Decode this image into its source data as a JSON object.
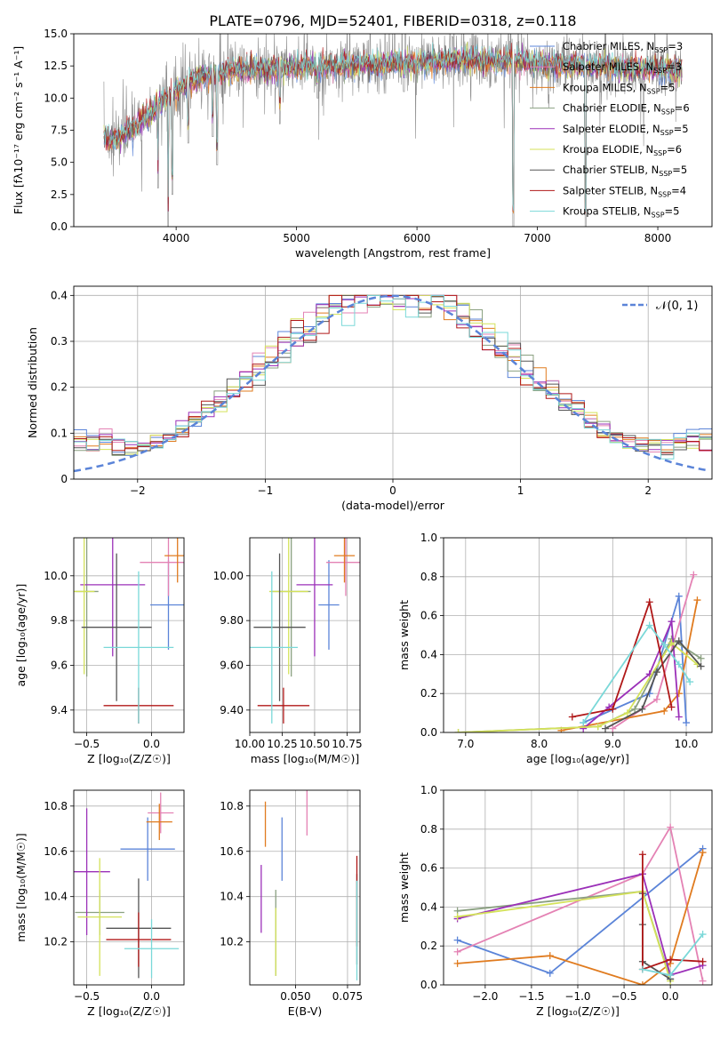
{
  "figure_title": "PLATE=0796, MJD=52401, FIBERID=0318, z=0.118",
  "model_colors": {
    "Chabrier MILES": "#5b84d8",
    "Salpeter MILES": "#e482b4",
    "Kroupa MILES": "#e07b1f",
    "Chabrier ELODIE": "#8aa080",
    "Salpeter ELODIE": "#9b30b8",
    "Kroupa ELODIE": "#d4e25a",
    "Chabrier STELIB": "#555555",
    "Salpeter STELIB": "#b01818",
    "Kroupa STELIB": "#7ad8d8",
    "data": "#8a8a8a",
    "gaussian": "#5b84d8"
  },
  "chart_data": [
    {
      "id": "spectrum",
      "type": "line",
      "title": "PLATE=0796, MJD=52401, FIBERID=0318, z=0.118",
      "xlabel": "wavelength [Angstrom, rest frame]",
      "ylabel": "Flux [fλ10⁻¹⁷ erg cm⁻² s⁻¹ A⁻¹]",
      "xlim": [
        3150,
        8450
      ],
      "ylim": [
        0,
        15
      ],
      "xticks": [
        4000,
        5000,
        6000,
        7000,
        8000
      ],
      "yticks": [
        0.0,
        2.5,
        5.0,
        7.5,
        10.0,
        12.5,
        15.0
      ],
      "legend_position": "right",
      "legend": [
        {
          "label": "Chabrier MILES, N",
          "sub": "SSP",
          "suffix": "=3"
        },
        {
          "label": "Salpeter MILES, N",
          "sub": "SSP",
          "suffix": "=3"
        },
        {
          "label": "Kroupa MILES, N",
          "sub": "SSP",
          "suffix": "=5"
        },
        {
          "label": "Chabrier ELODIE, N",
          "sub": "SSP",
          "suffix": "=6"
        },
        {
          "label": "Salpeter ELODIE, N",
          "sub": "SSP",
          "suffix": "=5"
        },
        {
          "label": "Kroupa ELODIE, N",
          "sub": "SSP",
          "suffix": "=6"
        },
        {
          "label": "Chabrier STELIB, N",
          "sub": "SSP",
          "suffix": "=5"
        },
        {
          "label": "Salpeter STELIB, N",
          "sub": "SSP",
          "suffix": "=4"
        },
        {
          "label": "Kroupa STELIB, N",
          "sub": "SSP",
          "suffix": "=5"
        }
      ],
      "continuum": {
        "x": [
          3400,
          3500,
          3600,
          3700,
          3800,
          3900,
          4000,
          4100,
          4200,
          4300,
          4400,
          4500,
          4600,
          4800,
          5000,
          5200,
          5400,
          5600,
          5800,
          6000,
          6200,
          6400,
          6600,
          6800,
          7000,
          7200,
          7400,
          7600,
          7800,
          8000,
          8200
        ],
        "y": [
          7.0,
          6.8,
          7.4,
          8.1,
          9.0,
          9.8,
          10.6,
          11.2,
          11.6,
          11.8,
          12.0,
          12.2,
          12.1,
          12.3,
          12.4,
          12.5,
          12.5,
          12.6,
          12.7,
          12.7,
          12.9,
          13.0,
          12.9,
          12.9,
          12.7,
          12.6,
          12.5,
          12.4,
          12.3,
          12.2,
          12.1
        ]
      },
      "dips": [
        {
          "x": 3850,
          "y": 3.0
        },
        {
          "x": 3934,
          "y": 0.0
        },
        {
          "x": 3968,
          "y": 2.5
        },
        {
          "x": 4101,
          "y": 6.5
        },
        {
          "x": 4304,
          "y": 7.0
        },
        {
          "x": 4340,
          "y": 4.8
        },
        {
          "x": 4861,
          "y": 8.0
        },
        {
          "x": 5175,
          "y": 10.0
        },
        {
          "x": 5270,
          "y": 11.0
        },
        {
          "x": 5892,
          "y": 10.5
        },
        {
          "x": 6563,
          "y": 11.5
        },
        {
          "x": 6800,
          "y": 0.0
        },
        {
          "x": 7400,
          "y": 0.0
        },
        {
          "x": 7600,
          "y": 11.0
        }
      ]
    },
    {
      "id": "residuals",
      "type": "line",
      "xlabel": "(data-model)/error",
      "ylabel": "Normed distribution",
      "xlim": [
        -2.5,
        2.5
      ],
      "ylim": [
        0,
        0.42
      ],
      "xticks": [
        -2,
        -1,
        0,
        1,
        2
      ],
      "yticks": [
        0.0,
        0.1,
        0.2,
        0.3,
        0.4
      ],
      "grid": true,
      "legend_position": "top-right",
      "legend": "𝒩(0, 1)",
      "gaussian": {
        "mean": 0,
        "sigma": 1
      }
    },
    {
      "id": "age-vs-Z",
      "type": "scatter",
      "xlabel": "Z [log₁₀(Z/Z☉)]",
      "ylabel": "age  [log₁₀(age/yr)]",
      "xlim": [
        -0.6,
        0.25
      ],
      "ylim": [
        9.3,
        10.17
      ],
      "xticks": [
        -0.5,
        0.0
      ],
      "yticks": [
        9.4,
        9.6,
        9.8,
        10.0
      ],
      "grid": true,
      "points": [
        {
          "model": "Chabrier MILES",
          "x": 0.13,
          "y": 9.87,
          "xerr": 0.14,
          "yerr": 0.2
        },
        {
          "model": "Salpeter MILES",
          "x": 0.13,
          "y": 10.06,
          "xerr": 0.22,
          "yerr": 0.15
        },
        {
          "model": "Kroupa MILES",
          "x": 0.2,
          "y": 10.09,
          "xerr": 0.1,
          "yerr": 0.12
        },
        {
          "model": "Chabrier ELODIE",
          "x": -0.5,
          "y": 9.93,
          "xerr": 0.09,
          "yerr": 0.38
        },
        {
          "model": "Salpeter ELODIE",
          "x": -0.3,
          "y": 9.96,
          "xerr": 0.25,
          "yerr": 0.32
        },
        {
          "model": "Kroupa ELODIE",
          "x": -0.52,
          "y": 9.93,
          "xerr": 0.08,
          "yerr": 0.37
        },
        {
          "model": "Chabrier STELIB",
          "x": -0.27,
          "y": 9.77,
          "xerr": 0.27,
          "yerr": 0.33
        },
        {
          "model": "Salpeter STELIB",
          "x": -0.1,
          "y": 9.42,
          "xerr": 0.27,
          "yerr": 0.08
        },
        {
          "model": "Kroupa STELIB",
          "x": -0.1,
          "y": 9.68,
          "xerr": 0.27,
          "yerr": 0.34
        }
      ]
    },
    {
      "id": "age-vs-mass",
      "type": "scatter",
      "xlabel": "mass [log₁₀(M/M☉)]",
      "xlim": [
        10.0,
        10.85
      ],
      "ylim": [
        9.3,
        10.17
      ],
      "xticks": [
        10.0,
        10.25,
        10.5,
        10.75
      ],
      "yticks": [
        9.4,
        9.6,
        9.8,
        10.0
      ],
      "grid": true,
      "points": [
        {
          "model": "Chabrier MILES",
          "x": 10.61,
          "y": 9.87,
          "xerr": 0.08,
          "yerr": 0.2
        },
        {
          "model": "Salpeter MILES",
          "x": 10.74,
          "y": 10.06,
          "xerr": 0.15,
          "yerr": 0.15
        },
        {
          "model": "Kroupa MILES",
          "x": 10.73,
          "y": 10.09,
          "xerr": 0.08,
          "yerr": 0.12
        },
        {
          "model": "Chabrier ELODIE",
          "x": 10.32,
          "y": 9.93,
          "xerr": 0.15,
          "yerr": 0.38
        },
        {
          "model": "Salpeter ELODIE",
          "x": 10.5,
          "y": 9.96,
          "xerr": 0.14,
          "yerr": 0.32
        },
        {
          "model": "Kroupa ELODIE",
          "x": 10.3,
          "y": 9.93,
          "xerr": 0.15,
          "yerr": 0.37
        },
        {
          "model": "Chabrier STELIB",
          "x": 10.23,
          "y": 9.77,
          "xerr": 0.2,
          "yerr": 0.33
        },
        {
          "model": "Salpeter STELIB",
          "x": 10.26,
          "y": 9.42,
          "xerr": 0.2,
          "yerr": 0.08
        },
        {
          "model": "Kroupa STELIB",
          "x": 10.17,
          "y": 9.68,
          "xerr": 0.2,
          "yerr": 0.34
        }
      ]
    },
    {
      "id": "mass-weight-vs-age",
      "type": "line",
      "xlabel": "age  [log₁₀(age/yr)]",
      "ylabel": "mass weight",
      "xlim": [
        6.7,
        10.35
      ],
      "ylim": [
        0,
        1
      ],
      "xticks": [
        7,
        8,
        9,
        10
      ],
      "yticks": [
        0.0,
        0.2,
        0.4,
        0.6,
        0.8,
        1.0
      ],
      "grid": true,
      "series": [
        {
          "model": "Chabrier MILES",
          "x": [
            8.6,
            9.5,
            9.9,
            10.0
          ],
          "y": [
            0.05,
            0.2,
            0.7,
            0.05
          ]
        },
        {
          "model": "Salpeter MILES",
          "x": [
            9.0,
            9.6,
            10.1
          ],
          "y": [
            0.02,
            0.17,
            0.81
          ]
        },
        {
          "model": "Kroupa MILES",
          "x": [
            8.3,
            9.7,
            9.9,
            10.15
          ],
          "y": [
            0.01,
            0.11,
            0.2,
            0.68
          ]
        },
        {
          "model": "Chabrier ELODIE",
          "x": [
            6.9,
            8.8,
            9.3,
            9.8,
            10.2
          ],
          "y": [
            0.0,
            0.03,
            0.12,
            0.48,
            0.38
          ]
        },
        {
          "model": "Salpeter ELODIE",
          "x": [
            8.6,
            8.95,
            9.5,
            9.8,
            9.9
          ],
          "y": [
            0.02,
            0.13,
            0.3,
            0.57,
            0.08
          ]
        },
        {
          "model": "Kroupa ELODIE",
          "x": [
            6.9,
            8.8,
            9.2,
            9.8,
            10.15
          ],
          "y": [
            0.0,
            0.03,
            0.1,
            0.46,
            0.35
          ]
        },
        {
          "model": "Chabrier STELIB",
          "x": [
            8.9,
            9.4,
            9.6,
            9.9,
            10.2
          ],
          "y": [
            0.02,
            0.12,
            0.31,
            0.47,
            0.34
          ]
        },
        {
          "model": "Salpeter STELIB",
          "x": [
            8.45,
            9.0,
            9.5,
            9.8
          ],
          "y": [
            0.08,
            0.12,
            0.67,
            0.13
          ]
        },
        {
          "model": "Kroupa STELIB",
          "x": [
            8.6,
            9.5,
            9.7,
            9.9,
            10.05
          ],
          "y": [
            0.05,
            0.55,
            0.45,
            0.35,
            0.26
          ]
        }
      ]
    },
    {
      "id": "mass-vs-Z",
      "type": "scatter",
      "xlabel": "Z [log₁₀(Z/Z☉)]",
      "ylabel": "mass [log₁₀(M/M☉)]",
      "xlim": [
        -0.6,
        0.25
      ],
      "ylim": [
        10.01,
        10.87
      ],
      "xticks": [
        -0.5,
        0.0
      ],
      "yticks": [
        10.2,
        10.4,
        10.6,
        10.8
      ],
      "grid": true,
      "points": [
        {
          "model": "Chabrier MILES",
          "x": -0.03,
          "y": 10.61,
          "yerr": 0.14,
          "xerr": 0.21
        },
        {
          "model": "Salpeter MILES",
          "x": 0.07,
          "y": 10.77,
          "yerr": 0.09,
          "xerr": 0.1
        },
        {
          "model": "Kroupa MILES",
          "x": 0.06,
          "y": 10.73,
          "yerr": 0.08,
          "xerr": 0.1
        },
        {
          "model": "Chabrier ELODIE",
          "x": -0.4,
          "y": 10.33,
          "yerr": 0.1,
          "xerr": 0.19
        },
        {
          "model": "Salpeter ELODIE",
          "x": -0.5,
          "y": 10.51,
          "yerr": 0.28,
          "xerr": 0.18
        },
        {
          "model": "Kroupa ELODIE",
          "x": -0.4,
          "y": 10.31,
          "yerr": 0.26,
          "xerr": 0.17
        },
        {
          "model": "Chabrier STELIB",
          "x": -0.1,
          "y": 10.26,
          "yerr": 0.22,
          "xerr": 0.25
        },
        {
          "model": "Salpeter STELIB",
          "x": -0.1,
          "y": 10.21,
          "yerr": 0.12,
          "xerr": 0.25
        },
        {
          "model": "Kroupa STELIB",
          "x": 0.0,
          "y": 10.17,
          "yerr": 0.13,
          "xerr": 0.21
        }
      ]
    },
    {
      "id": "mass-vs-ebv",
      "type": "scatter",
      "xlabel": "E(B-V)",
      "xlim": [
        0.028,
        0.081
      ],
      "ylim": [
        10.01,
        10.87
      ],
      "xticks": [
        0.05,
        0.075
      ],
      "yticks": [
        10.2,
        10.4,
        10.6,
        10.8
      ],
      "grid": true,
      "points": [
        {
          "model": "Chabrier MILES",
          "x": 0.0435,
          "y": 10.61,
          "yerr": 0.14
        },
        {
          "model": "Salpeter MILES",
          "x": 0.0555,
          "y": 10.77,
          "yerr": 0.1
        },
        {
          "model": "Kroupa MILES",
          "x": 0.0355,
          "y": 10.72,
          "yerr": 0.1
        },
        {
          "model": "Chabrier ELODIE",
          "x": 0.0405,
          "y": 10.24,
          "yerr": 0.19
        },
        {
          "model": "Salpeter ELODIE",
          "x": 0.0335,
          "y": 10.39,
          "yerr": 0.15
        },
        {
          "model": "Kroupa ELODIE",
          "x": 0.0405,
          "y": 10.2,
          "yerr": 0.15
        },
        {
          "model": "Chabrier STELIB",
          "x": 0.0795,
          "y": 10.3,
          "yerr": 0.2
        },
        {
          "model": "Salpeter STELIB",
          "x": 0.0795,
          "y": 10.38,
          "yerr": 0.2
        },
        {
          "model": "Kroupa STELIB",
          "x": 0.0795,
          "y": 10.25,
          "yerr": 0.22
        }
      ]
    },
    {
      "id": "mass-weight-vs-Z",
      "type": "line",
      "xlabel": "Z [log₁₀(Z/Z☉)]",
      "ylabel": "mass weight",
      "xlim": [
        -2.45,
        0.45
      ],
      "ylim": [
        0,
        1
      ],
      "xticks": [
        -2.0,
        -1.5,
        -1.0,
        -0.5,
        0.0
      ],
      "yticks": [
        0.0,
        0.2,
        0.4,
        0.6,
        0.8,
        1.0
      ],
      "grid": true,
      "series": [
        {
          "model": "Chabrier MILES",
          "x": [
            -2.3,
            -1.3,
            0.35
          ],
          "y": [
            0.23,
            0.06,
            0.7
          ]
        },
        {
          "model": "Salpeter MILES",
          "x": [
            -2.3,
            -0.3,
            0.0,
            0.35
          ],
          "y": [
            0.17,
            0.57,
            0.81,
            0.02
          ]
        },
        {
          "model": "Kroupa MILES",
          "x": [
            -2.3,
            -1.3,
            -0.3,
            0.0,
            0.35
          ],
          "y": [
            0.11,
            0.15,
            0.0,
            0.11,
            0.68
          ]
        },
        {
          "model": "Chabrier ELODIE",
          "x": [
            -2.3,
            -0.3,
            0.0
          ],
          "y": [
            0.38,
            0.48,
            0.03
          ]
        },
        {
          "model": "Salpeter ELODIE",
          "x": [
            -2.3,
            -0.3,
            0.0,
            0.35
          ],
          "y": [
            0.34,
            0.57,
            0.05,
            0.1
          ]
        },
        {
          "model": "Kroupa ELODIE",
          "x": [
            -2.3,
            -0.3,
            0.0
          ],
          "y": [
            0.35,
            0.48,
            0.02
          ]
        },
        {
          "model": "Chabrier STELIB",
          "x": [
            -0.3,
            -0.3,
            -0.3,
            0.0
          ],
          "y": [
            0.47,
            0.31,
            0.12,
            0.03
          ]
        },
        {
          "model": "Salpeter STELIB",
          "x": [
            -0.3,
            -0.3,
            0.0,
            0.35
          ],
          "y": [
            0.67,
            0.08,
            0.13,
            0.12
          ]
        },
        {
          "model": "Kroupa STELIB",
          "x": [
            -0.3,
            0.0,
            0.35
          ],
          "y": [
            0.08,
            0.05,
            0.26
          ]
        }
      ]
    }
  ]
}
